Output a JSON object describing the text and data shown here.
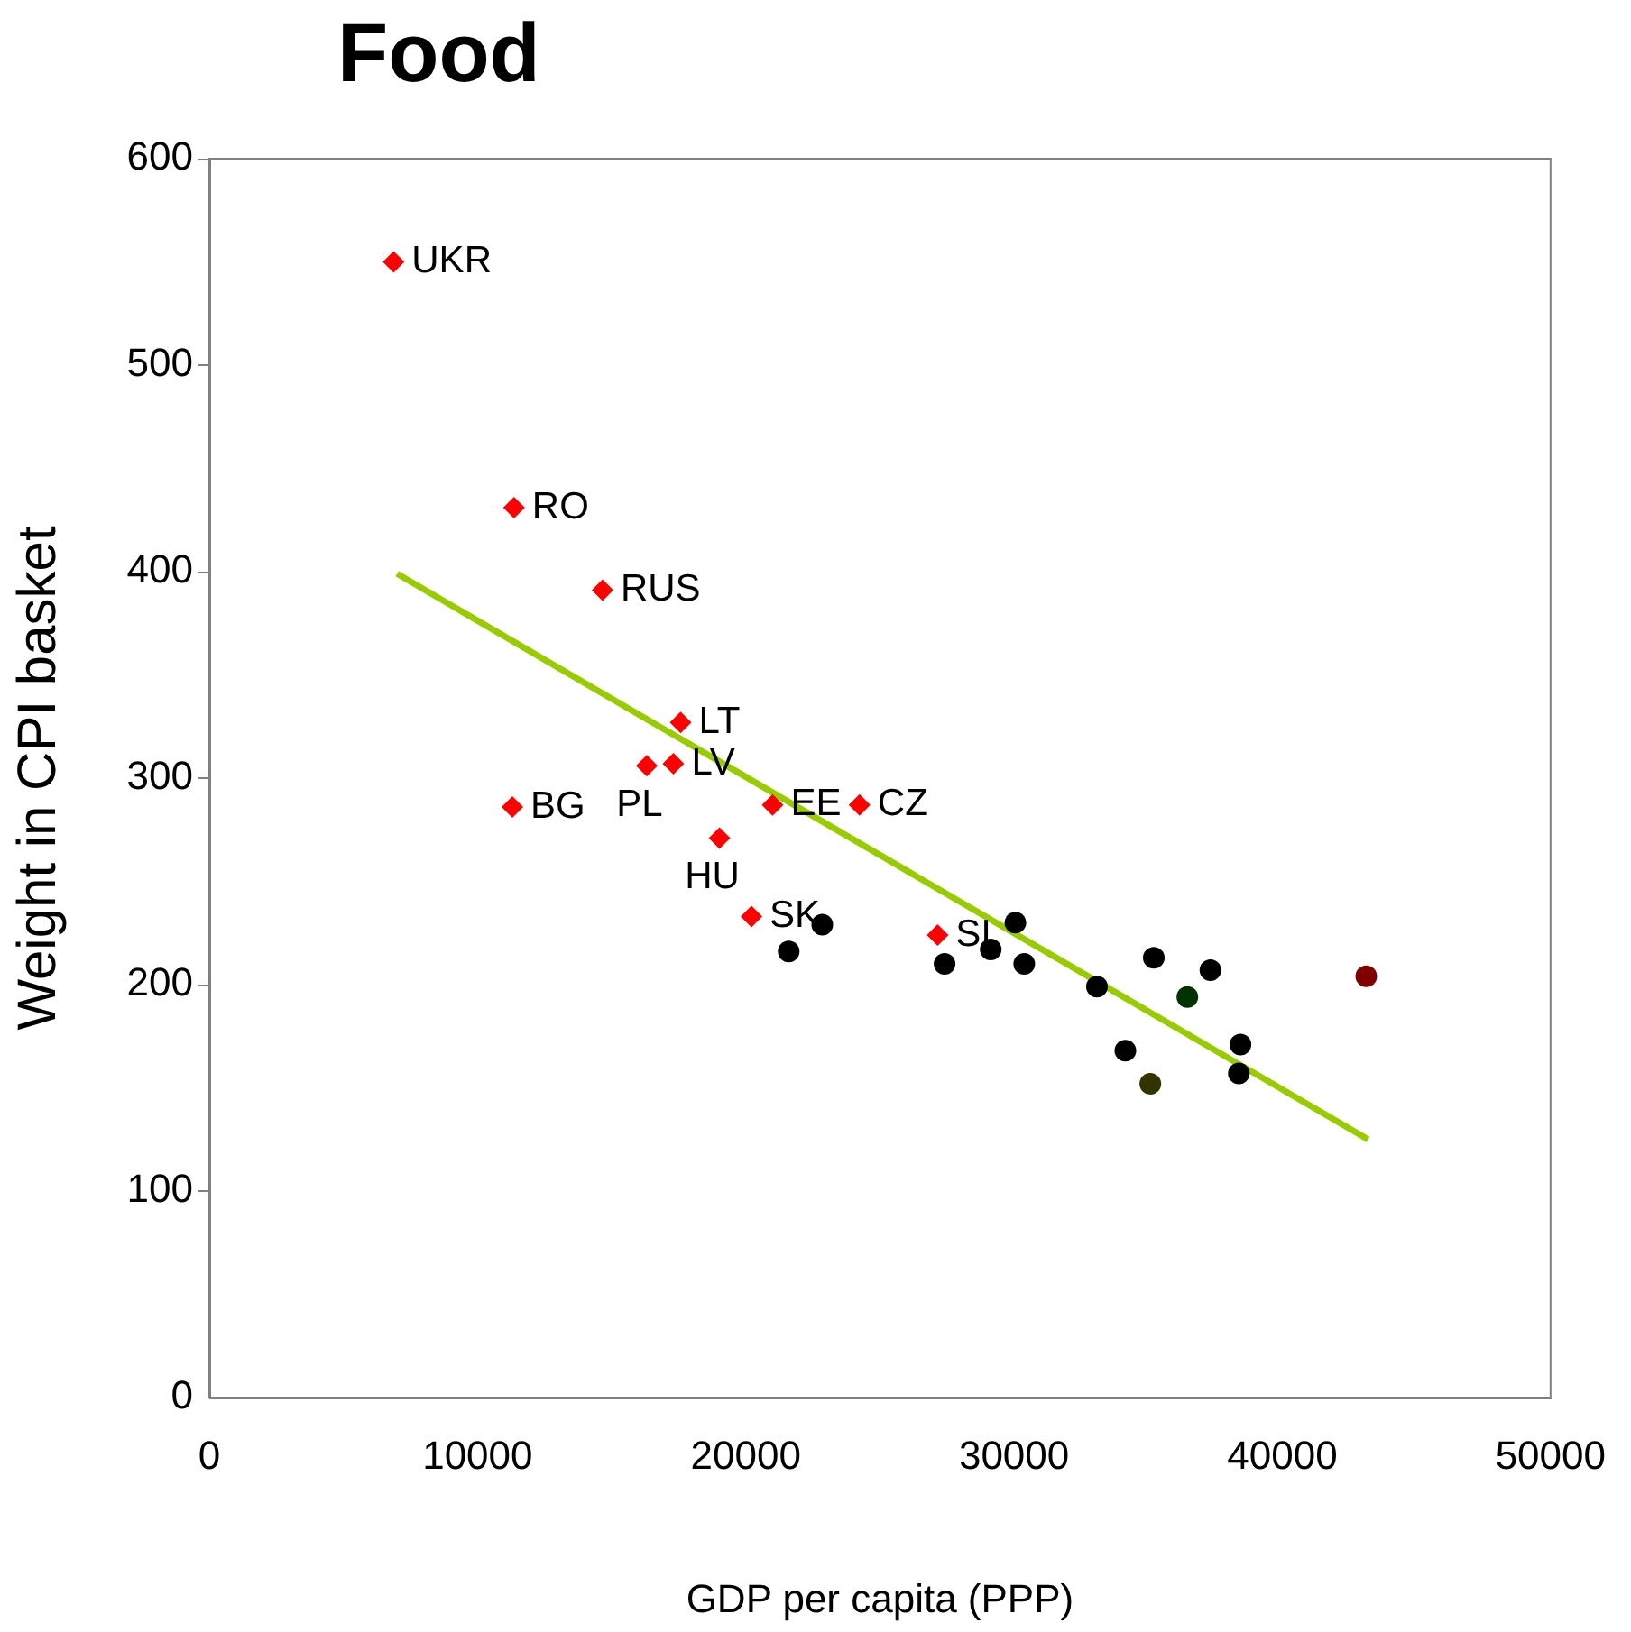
{
  "chart_data": {
    "type": "scatter",
    "title": "Food",
    "xlabel": "GDP per capita (PPP)",
    "ylabel": "Weight in CPI basket",
    "xlim": [
      0,
      50000
    ],
    "xticks": [
      0,
      10000,
      20000,
      30000,
      40000,
      50000
    ],
    "ylim": [
      0,
      600
    ],
    "yticks": [
      0,
      100,
      200,
      300,
      400,
      500,
      600
    ],
    "grid": false,
    "legend": false,
    "series": [
      {
        "type": "scatter",
        "marker": "diamond",
        "color": "#ff0000",
        "x": [
          6870,
          11360,
          14660,
          11300,
          17570,
          16310,
          17300,
          21000,
          24240,
          19020,
          20210,
          27150
        ],
        "values": [
          550,
          431,
          391,
          286,
          327,
          306,
          307,
          287,
          287,
          271,
          233,
          224
        ],
        "value_labels": [
          "UKR",
          "RO",
          "RUS",
          "BG",
          "LT",
          "PL",
          "LV",
          "EE",
          "CZ",
          "HU",
          "SK",
          "SI"
        ]
      },
      {
        "type": "scatter",
        "marker": "circle",
        "x": [
          21600,
          22850,
          27410,
          29130,
          30050,
          30380,
          33090,
          35210,
          37320,
          34150,
          38440,
          38380,
          36460,
          35080,
          43130
        ],
        "values": [
          216,
          229,
          210,
          217,
          230,
          210,
          199,
          213,
          207,
          168,
          171,
          157,
          194,
          152,
          204
        ],
        "colors": [
          "#000000",
          "#000000",
          "#000000",
          "#000000",
          "#000000",
          "#000000",
          "#000000",
          "#000000",
          "#000000",
          "#000000",
          "#000000",
          "#000000",
          "#003300",
          "#333300",
          "#800000"
        ]
      },
      {
        "type": "line",
        "marker": "none",
        "line_style": "solid",
        "color": "#99cc00",
        "x": [
          7000,
          43200
        ],
        "values": [
          399,
          125
        ]
      }
    ]
  }
}
